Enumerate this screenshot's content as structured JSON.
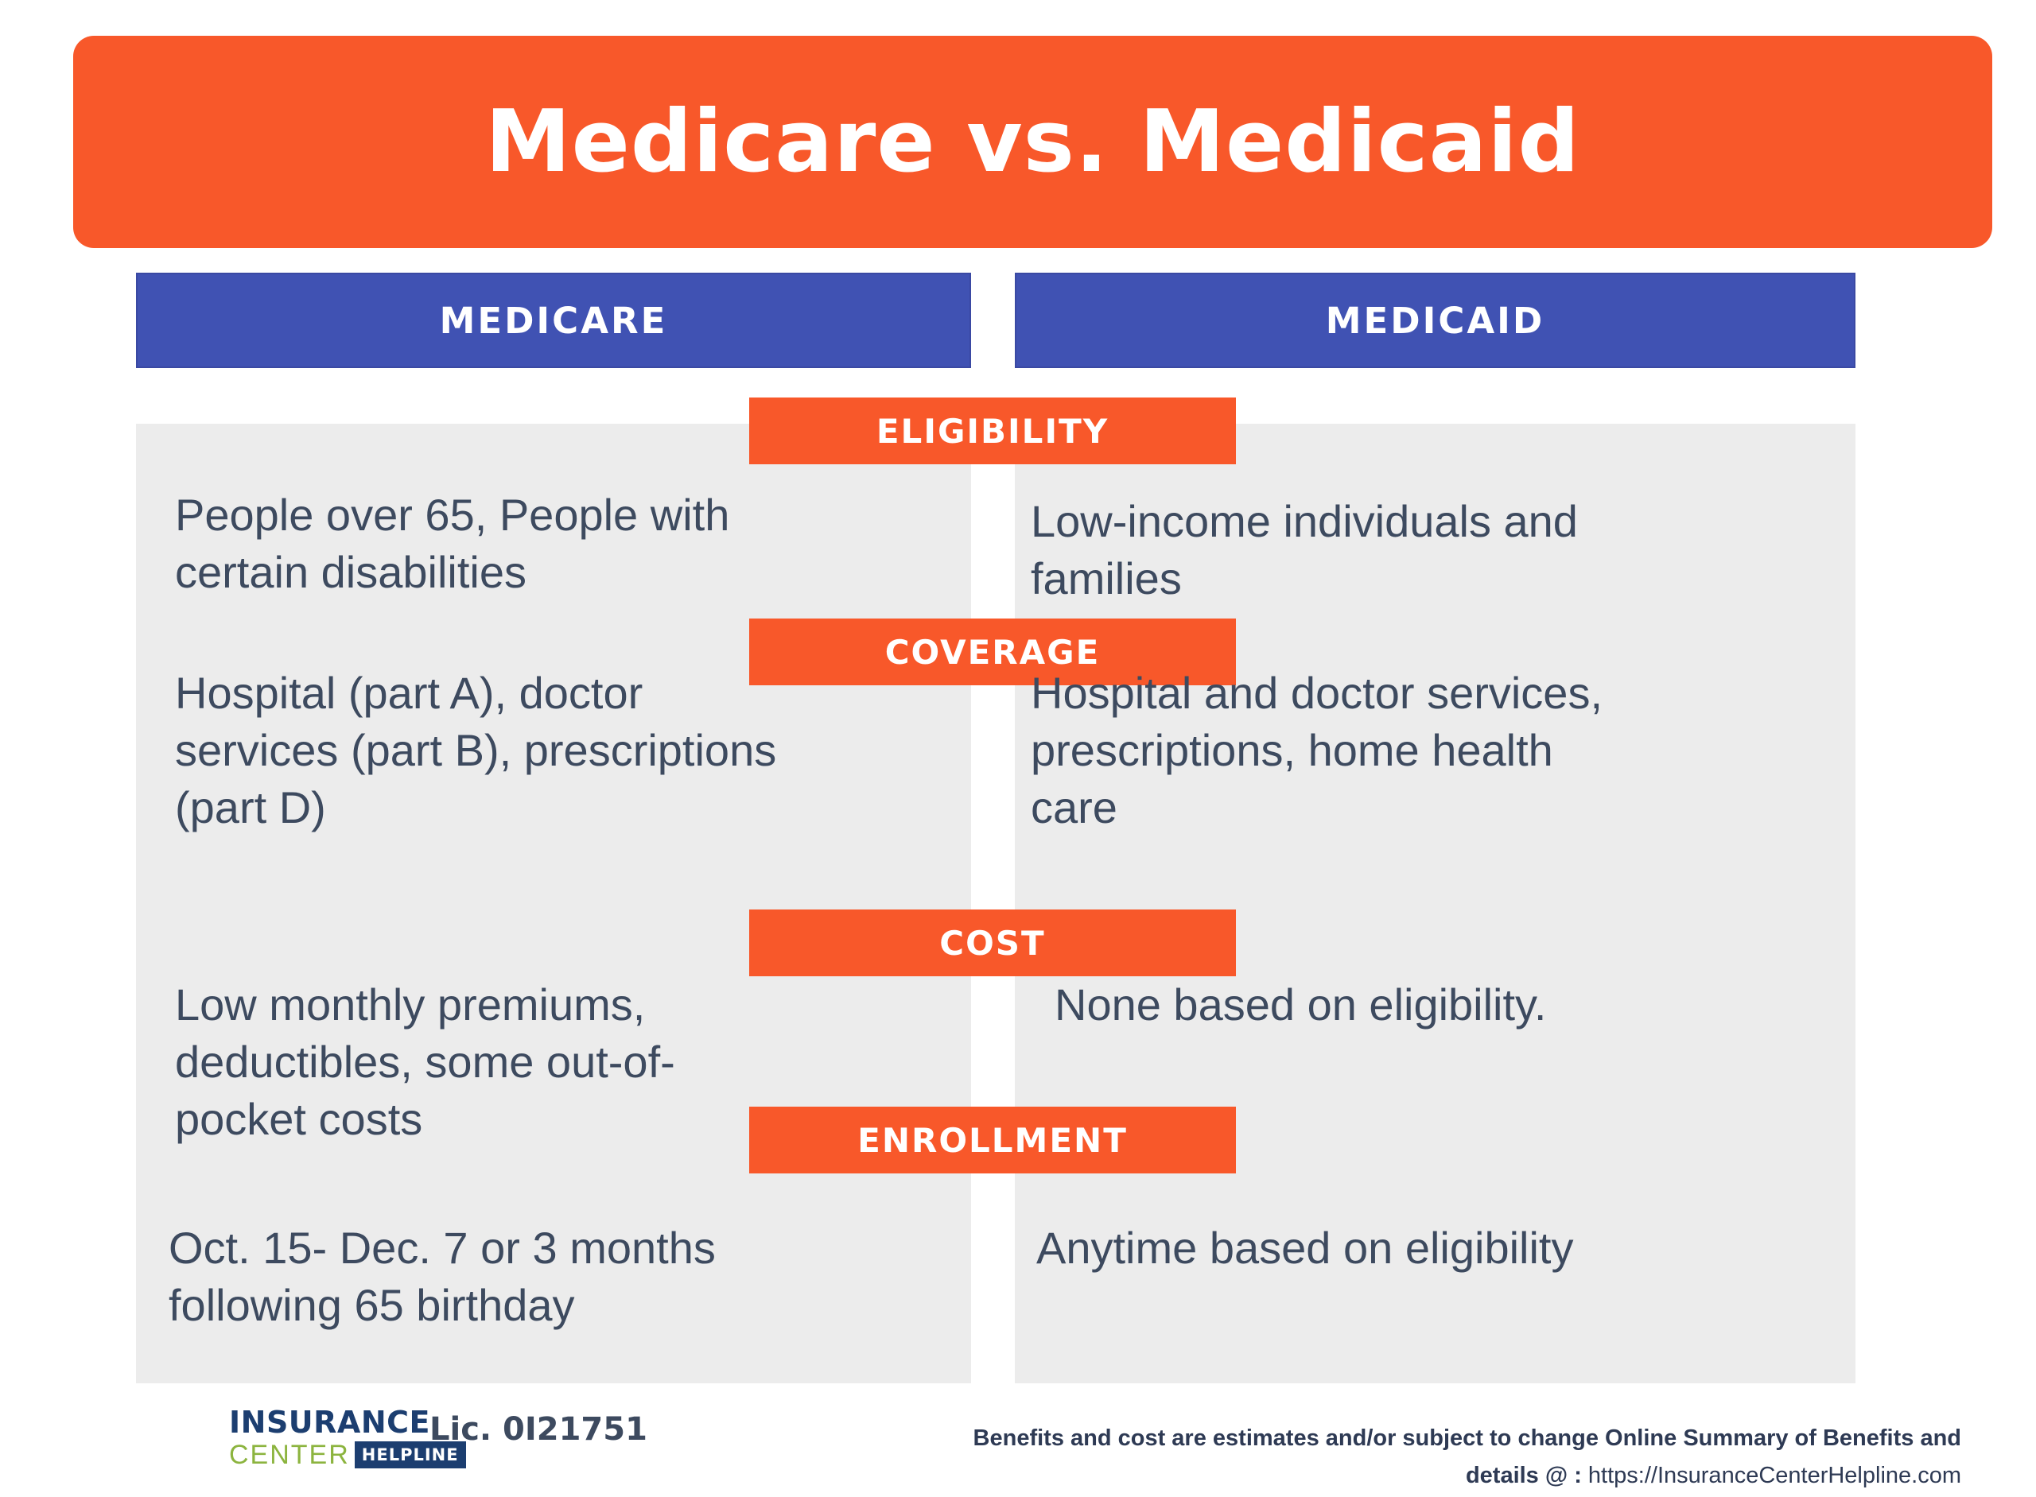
{
  "page_title": "Medicare vs. Medicaid",
  "column_headers": {
    "medicare": "MEDICARE",
    "medicaid": "MEDICAID"
  },
  "sections": [
    {
      "label": "ELIGIBILITY",
      "medicare": "People over 65, People with\ncertain disabilities",
      "medicaid": "Low-income individuals and\nfamilies"
    },
    {
      "label": "COVERAGE",
      "medicare": "Hospital (part A), doctor\nservices (part B), prescriptions\n(part D)",
      "medicaid": "Hospital and doctor services,\nprescriptions, home health\ncare"
    },
    {
      "label": "COST",
      "medicare": "Low monthly premiums,\ndeductibles, some out-of-\npocket costs",
      "medicaid": "None based on eligibility."
    },
    {
      "label": "ENROLLMENT",
      "medicare": "Oct. 15- Dec. 7 or 3 months\nfollowing 65 birthday",
      "medicaid": "Anytime based on eligibility"
    }
  ],
  "footer": {
    "logo": {
      "line1": "INSURANCE",
      "line2": "CENTER",
      "badge": "HELPLINE"
    },
    "license": "Lic. 0I21751",
    "disclaimer_line1": "Benefits and cost are estimates and/or subject to change Online Summary of Benefits and",
    "disclaimer_line2_bold": "details @ :",
    "disclaimer_line2_url": "https://InsuranceCenterHelpline.com"
  },
  "colors": {
    "accent_orange": "#F8582A",
    "header_blue": "#4052B3",
    "column_gray": "#ECECEC",
    "body_text": "#3D4A5F",
    "logo_navy": "#1C3E70",
    "logo_green": "#8CB43F",
    "disclaimer_navy": "#2E3A54"
  }
}
